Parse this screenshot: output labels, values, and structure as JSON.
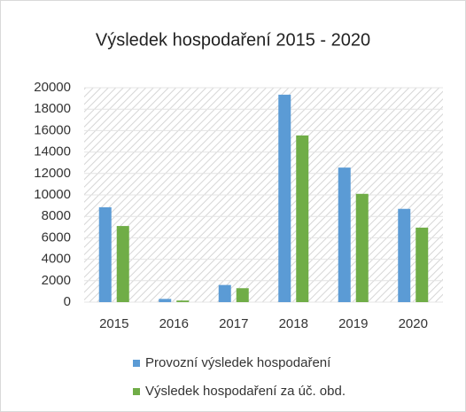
{
  "chart_data": {
    "type": "bar",
    "title": "Výsledek hospodaření 2015 - 2020",
    "categories": [
      "2015",
      "2016",
      "2017",
      "2018",
      "2019",
      "2020"
    ],
    "series": [
      {
        "name": "Provozní výsledek hospodaření",
        "color": "#5b9bd5",
        "values": [
          8850,
          300,
          1600,
          19350,
          12550,
          8700
        ]
      },
      {
        "name": "Výsledek hospodaření za úč. obd.",
        "color": "#70ad47",
        "values": [
          7100,
          150,
          1300,
          15550,
          10100,
          6950
        ]
      }
    ],
    "ylim": [
      0,
      20000
    ],
    "yticks": [
      0,
      2000,
      4000,
      6000,
      8000,
      10000,
      12000,
      14000,
      16000,
      18000,
      20000
    ],
    "grid": true
  }
}
